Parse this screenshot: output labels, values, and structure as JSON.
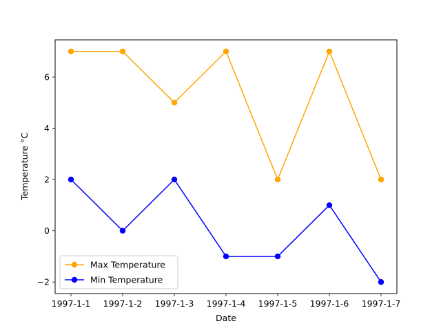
{
  "chart_data": {
    "type": "line",
    "xlabel": "Date",
    "ylabel": "Temperature °C",
    "categories": [
      "1997-1-1",
      "1997-1-2",
      "1997-1-3",
      "1997-1-4",
      "1997-1-5",
      "1997-1-6",
      "1997-1-7"
    ],
    "ylim": [
      -2.45,
      7.45
    ],
    "yticks": [
      -2,
      0,
      2,
      4,
      6
    ],
    "ytick_labels": [
      "−2",
      "0",
      "2",
      "4",
      "6"
    ],
    "grid": false,
    "legend_position": "lower-left",
    "series": [
      {
        "name": "Max Temperature",
        "color": "#ffa500",
        "marker": "circle",
        "values": [
          7,
          7,
          5,
          7,
          2,
          7,
          2
        ]
      },
      {
        "name": "Min Temperature",
        "color": "#0000ff",
        "marker": "circle",
        "values": [
          2,
          0,
          2,
          -1,
          -1,
          1,
          -2
        ]
      }
    ]
  }
}
